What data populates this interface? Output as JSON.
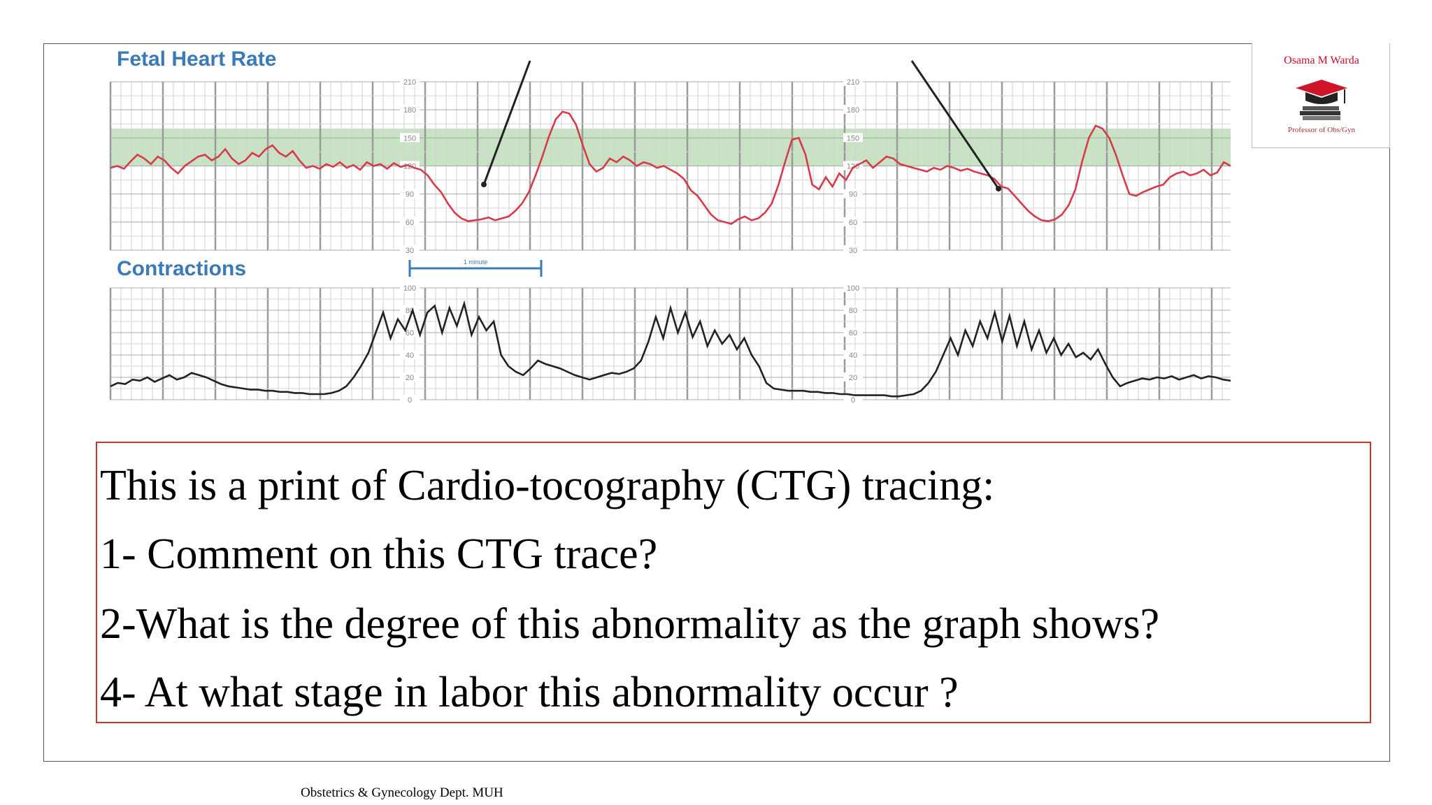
{
  "chart_data": [
    {
      "type": "line",
      "title": "Fetal Heart Rate",
      "y_ticks_left": [
        "210",
        "180",
        "150",
        "120",
        "90",
        "60",
        "30"
      ],
      "y_ticks_right": [
        "210",
        "180",
        "150",
        "120",
        "90",
        "60",
        "30"
      ],
      "ylim": [
        30,
        210
      ],
      "normal_band": [
        120,
        160
      ],
      "grid": true,
      "line_color": "#d63b4a",
      "band_color": "#c8e3c4",
      "series": [
        {
          "values": [
            118,
            120,
            117,
            125,
            132,
            128,
            122,
            130,
            126,
            118,
            112,
            120,
            125,
            130,
            132,
            126,
            130,
            138,
            128,
            122,
            126,
            134,
            130,
            138,
            142,
            134,
            130,
            136,
            126,
            118,
            120,
            117,
            122,
            119,
            124,
            118,
            121,
            116,
            124,
            120,
            122,
            117,
            123,
            119,
            121,
            118,
            116,
            110,
            100,
            92,
            80,
            70,
            64,
            61,
            62,
            63,
            65,
            62,
            64,
            66,
            72,
            80,
            92,
            110,
            130,
            152,
            170,
            178,
            176,
            164,
            142,
            122,
            114,
            118,
            128,
            124,
            130,
            126,
            120,
            124,
            122,
            118,
            120,
            116,
            112,
            106,
            94,
            88,
            78,
            68,
            62,
            60,
            58,
            63,
            66,
            62,
            64,
            70,
            80,
            100,
            125,
            148,
            150,
            132,
            100,
            95,
            108,
            98,
            112,
            105,
            118,
            122,
            126,
            118,
            124,
            130,
            128,
            122,
            120,
            118,
            116,
            114,
            118,
            116,
            120,
            118,
            115,
            117,
            114,
            112,
            110,
            106,
            98,
            96,
            88,
            80,
            72,
            66,
            62,
            61,
            63,
            68,
            78,
            95,
            125,
            150,
            163,
            160,
            150,
            132,
            110,
            90,
            88,
            92,
            95,
            98,
            100,
            108,
            112,
            114,
            110,
            112,
            116,
            110,
            113,
            124,
            120
          ]
        }
      ],
      "annotations": [
        "",
        ""
      ]
    },
    {
      "type": "line",
      "title": "Contractions",
      "scale_label": "1 minute",
      "y_ticks": [
        "100",
        "80",
        "60",
        "40",
        "20",
        "0"
      ],
      "y_ticks_right": [
        "100",
        "80",
        "60",
        "40",
        "20",
        "0"
      ],
      "ylim": [
        0,
        100
      ],
      "grid": true,
      "line_color": "#222222",
      "series": [
        {
          "values": [
            12,
            15,
            14,
            18,
            17,
            20,
            16,
            19,
            22,
            18,
            20,
            24,
            22,
            20,
            17,
            14,
            12,
            11,
            10,
            9,
            9,
            8,
            8,
            7,
            7,
            6,
            6,
            5,
            5,
            5,
            6,
            8,
            12,
            20,
            30,
            42,
            60,
            78,
            55,
            72,
            62,
            80,
            58,
            78,
            84,
            60,
            82,
            66,
            86,
            58,
            74,
            62,
            70,
            40,
            30,
            25,
            22,
            28,
            35,
            32,
            30,
            28,
            25,
            22,
            20,
            18,
            20,
            22,
            24,
            23,
            25,
            28,
            35,
            52,
            74,
            55,
            82,
            60,
            78,
            56,
            70,
            48,
            62,
            50,
            58,
            45,
            55,
            40,
            30,
            15,
            10,
            9,
            8,
            8,
            8,
            7,
            7,
            6,
            6,
            5,
            5,
            4,
            4,
            4,
            4,
            4,
            3,
            3,
            4,
            5,
            8,
            15,
            25,
            40,
            55,
            40,
            62,
            48,
            70,
            55,
            78,
            52,
            75,
            48,
            70,
            45,
            62,
            42,
            55,
            40,
            50,
            38,
            42,
            36,
            45,
            32,
            20,
            12,
            15,
            17,
            19,
            18,
            20,
            19,
            21,
            18,
            20,
            22,
            19,
            21,
            20,
            18,
            17
          ]
        }
      ]
    }
  ],
  "logo": {
    "name": "Osama M Warda",
    "subtitle": "Professor of Obs/Gyn"
  },
  "question": {
    "intro": "This is a print of Cardio-tocography (CTG) tracing:",
    "q1": "1- Comment on this CTG trace?",
    "q2": "2-What is the degree of this abnormality as the  graph shows?",
    "q4": "4- At what stage in labor this abnormality occur ?"
  },
  "footer": "Obstetrics & Gynecology Dept. MUH"
}
